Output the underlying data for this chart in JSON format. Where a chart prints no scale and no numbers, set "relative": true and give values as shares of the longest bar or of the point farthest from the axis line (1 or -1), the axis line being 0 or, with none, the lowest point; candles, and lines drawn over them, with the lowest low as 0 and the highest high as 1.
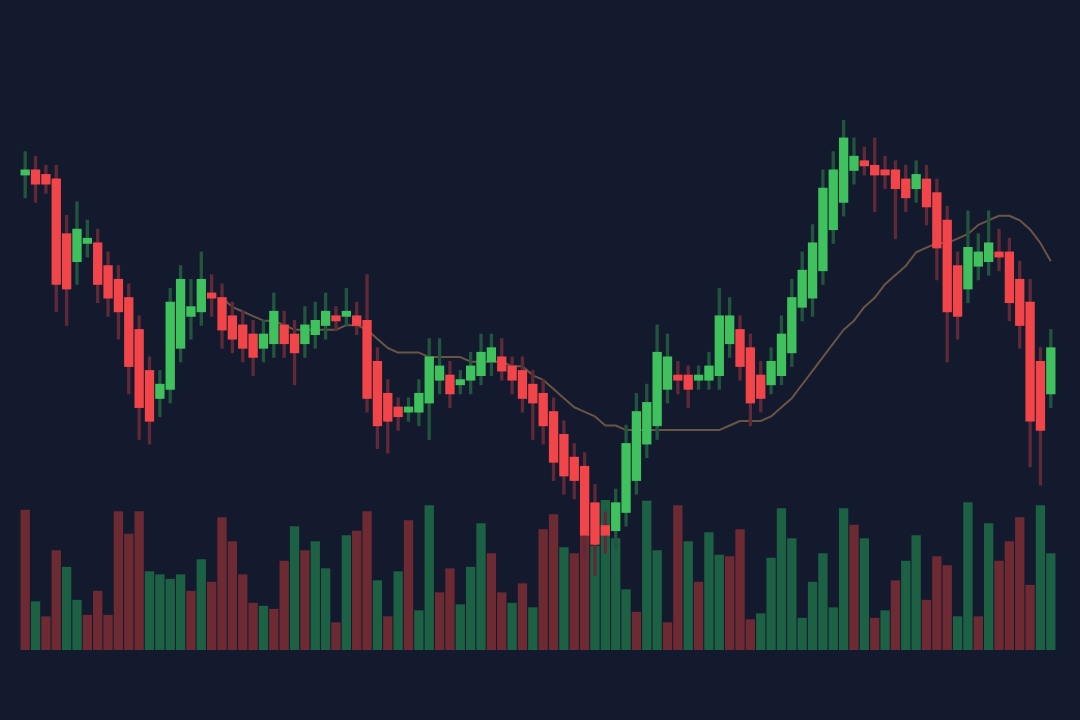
{
  "chart_data": [
    {
      "type": "candlestick",
      "relative": true,
      "legend": false,
      "grid": false,
      "tick_labels": false,
      "categories": [
        null,
        null,
        null,
        null,
        null,
        null,
        null,
        null,
        null,
        null,
        null,
        null,
        null,
        null,
        null,
        null,
        null,
        null,
        null,
        null,
        null,
        null,
        null,
        null,
        null,
        null,
        null,
        null,
        null,
        null,
        null,
        null,
        null,
        null,
        null,
        null,
        null,
        null,
        null,
        null,
        null,
        null,
        null,
        null,
        null,
        null,
        null,
        null,
        null,
        null,
        null,
        null,
        null,
        null,
        null,
        null,
        null,
        null,
        null,
        null,
        null,
        null,
        null,
        null,
        null,
        null,
        null,
        null,
        null,
        null,
        null,
        null,
        null,
        null,
        null,
        null,
        null,
        null,
        null,
        null,
        null,
        null,
        null,
        null,
        null,
        null,
        null,
        null,
        null,
        null,
        null,
        null,
        null,
        null,
        null,
        null,
        null,
        null,
        null,
        null
      ],
      "ohlc": [
        [
          0.88,
          0.93,
          0.83,
          0.89
        ],
        [
          0.89,
          0.92,
          0.82,
          0.86
        ],
        [
          0.88,
          0.9,
          0.84,
          0.86
        ],
        [
          0.87,
          0.9,
          0.58,
          0.64
        ],
        [
          0.75,
          0.79,
          0.55,
          0.63
        ],
        [
          0.69,
          0.82,
          0.64,
          0.76
        ],
        [
          0.73,
          0.78,
          0.7,
          0.74
        ],
        [
          0.73,
          0.76,
          0.6,
          0.64
        ],
        [
          0.68,
          0.71,
          0.57,
          0.61
        ],
        [
          0.65,
          0.68,
          0.52,
          0.58
        ],
        [
          0.61,
          0.64,
          0.4,
          0.46
        ],
        [
          0.54,
          0.57,
          0.3,
          0.37
        ],
        [
          0.45,
          0.48,
          0.29,
          0.34
        ],
        [
          0.39,
          0.45,
          0.35,
          0.42
        ],
        [
          0.41,
          0.63,
          0.38,
          0.6
        ],
        [
          0.5,
          0.68,
          0.47,
          0.65
        ],
        [
          0.57,
          0.65,
          0.52,
          0.59
        ],
        [
          0.58,
          0.71,
          0.55,
          0.65
        ],
        [
          0.62,
          0.66,
          0.57,
          0.61
        ],
        [
          0.61,
          0.64,
          0.5,
          0.54
        ],
        [
          0.57,
          0.6,
          0.49,
          0.52
        ],
        [
          0.55,
          0.58,
          0.47,
          0.5
        ],
        [
          0.53,
          0.56,
          0.44,
          0.48
        ],
        [
          0.5,
          0.56,
          0.47,
          0.53
        ],
        [
          0.51,
          0.62,
          0.48,
          0.58
        ],
        [
          0.55,
          0.58,
          0.48,
          0.51
        ],
        [
          0.53,
          0.56,
          0.42,
          0.49
        ],
        [
          0.51,
          0.59,
          0.48,
          0.55
        ],
        [
          0.53,
          0.6,
          0.5,
          0.56
        ],
        [
          0.55,
          0.62,
          0.52,
          0.58
        ],
        [
          0.57,
          0.59,
          0.54,
          0.56
        ],
        [
          0.57,
          0.63,
          0.55,
          0.58
        ],
        [
          0.57,
          0.6,
          0.53,
          0.55
        ],
        [
          0.56,
          0.66,
          0.36,
          0.39
        ],
        [
          0.47,
          0.5,
          0.28,
          0.33
        ],
        [
          0.4,
          0.43,
          0.27,
          0.34
        ],
        [
          0.37,
          0.39,
          0.32,
          0.35
        ],
        [
          0.36,
          0.39,
          0.34,
          0.37
        ],
        [
          0.36,
          0.43,
          0.33,
          0.4
        ],
        [
          0.38,
          0.52,
          0.3,
          0.48
        ],
        [
          0.43,
          0.52,
          0.4,
          0.46
        ],
        [
          0.44,
          0.47,
          0.37,
          0.4
        ],
        [
          0.42,
          0.45,
          0.4,
          0.43
        ],
        [
          0.43,
          0.49,
          0.4,
          0.46
        ],
        [
          0.44,
          0.53,
          0.42,
          0.49
        ],
        [
          0.47,
          0.53,
          0.44,
          0.5
        ],
        [
          0.48,
          0.52,
          0.43,
          0.45
        ],
        [
          0.46,
          0.48,
          0.4,
          0.43
        ],
        [
          0.45,
          0.48,
          0.36,
          0.39
        ],
        [
          0.42,
          0.45,
          0.3,
          0.38
        ],
        [
          0.4,
          0.43,
          0.29,
          0.33
        ],
        [
          0.36,
          0.39,
          0.21,
          0.25
        ],
        [
          0.31,
          0.34,
          0.18,
          0.22
        ],
        [
          0.26,
          0.29,
          0.17,
          0.21
        ],
        [
          0.24,
          0.27,
          0.04,
          0.09
        ],
        [
          0.16,
          0.2,
          0.0,
          0.07
        ],
        [
          0.11,
          0.14,
          0.05,
          0.09
        ],
        [
          0.1,
          0.19,
          0.06,
          0.16
        ],
        [
          0.14,
          0.33,
          0.11,
          0.29
        ],
        [
          0.21,
          0.4,
          0.18,
          0.36
        ],
        [
          0.29,
          0.42,
          0.26,
          0.38
        ],
        [
          0.33,
          0.55,
          0.3,
          0.49
        ],
        [
          0.41,
          0.53,
          0.38,
          0.48
        ],
        [
          0.44,
          0.47,
          0.4,
          0.43
        ],
        [
          0.44,
          0.46,
          0.37,
          0.41
        ],
        [
          0.43,
          0.46,
          0.41,
          0.44
        ],
        [
          0.43,
          0.49,
          0.41,
          0.46
        ],
        [
          0.44,
          0.63,
          0.41,
          0.57
        ],
        [
          0.51,
          0.61,
          0.48,
          0.57
        ],
        [
          0.54,
          0.57,
          0.43,
          0.46
        ],
        [
          0.5,
          0.53,
          0.33,
          0.38
        ],
        [
          0.44,
          0.47,
          0.36,
          0.39
        ],
        [
          0.42,
          0.5,
          0.4,
          0.47
        ],
        [
          0.44,
          0.57,
          0.42,
          0.53
        ],
        [
          0.49,
          0.65,
          0.46,
          0.61
        ],
        [
          0.59,
          0.71,
          0.56,
          0.67
        ],
        [
          0.61,
          0.77,
          0.57,
          0.73
        ],
        [
          0.67,
          0.89,
          0.64,
          0.85
        ],
        [
          0.76,
          0.93,
          0.73,
          0.89
        ],
        [
          0.82,
          1.0,
          0.79,
          0.96
        ],
        [
          0.89,
          0.96,
          0.86,
          0.92
        ],
        [
          0.91,
          0.94,
          0.88,
          0.9
        ],
        [
          0.9,
          0.96,
          0.8,
          0.88
        ],
        [
          0.89,
          0.92,
          0.85,
          0.88
        ],
        [
          0.89,
          0.91,
          0.74,
          0.85
        ],
        [
          0.87,
          0.9,
          0.8,
          0.83
        ],
        [
          0.85,
          0.91,
          0.82,
          0.88
        ],
        [
          0.87,
          0.9,
          0.77,
          0.81
        ],
        [
          0.84,
          0.87,
          0.65,
          0.72
        ],
        [
          0.78,
          0.81,
          0.47,
          0.58
        ],
        [
          0.68,
          0.71,
          0.52,
          0.57
        ],
        [
          0.63,
          0.8,
          0.6,
          0.72
        ],
        [
          0.68,
          0.75,
          0.65,
          0.71
        ],
        [
          0.69,
          0.8,
          0.66,
          0.73
        ],
        [
          0.71,
          0.76,
          0.67,
          0.7
        ],
        [
          0.71,
          0.74,
          0.56,
          0.6
        ],
        [
          0.65,
          0.69,
          0.5,
          0.55
        ],
        [
          0.6,
          0.65,
          0.24,
          0.34
        ],
        [
          0.47,
          0.5,
          0.2,
          0.32
        ],
        [
          0.4,
          0.54,
          0.37,
          0.5
        ]
      ],
      "colors": [
        "#3fc25d",
        "#f2454a",
        "#f2454a",
        "#f2454a",
        "#f2454a",
        "#3fc25d",
        "#3fc25d",
        "#f2454a",
        "#f2454a",
        "#f2454a",
        "#f2454a",
        "#f2454a",
        "#f2454a",
        "#3fc25d",
        "#3fc25d",
        "#3fc25d",
        "#3fc25d",
        "#3fc25d",
        "#f2454a",
        "#f2454a",
        "#f2454a",
        "#f2454a",
        "#f2454a",
        "#3fc25d",
        "#3fc25d",
        "#f2454a",
        "#f2454a",
        "#3fc25d",
        "#3fc25d",
        "#3fc25d",
        "#f2454a",
        "#3fc25d",
        "#f2454a",
        "#f2454a",
        "#f2454a",
        "#f2454a",
        "#f2454a",
        "#3fc25d",
        "#3fc25d",
        "#3fc25d",
        "#3fc25d",
        "#f2454a",
        "#3fc25d",
        "#3fc25d",
        "#3fc25d",
        "#3fc25d",
        "#f2454a",
        "#f2454a",
        "#f2454a",
        "#f2454a",
        "#f2454a",
        "#f2454a",
        "#f2454a",
        "#f2454a",
        "#f2454a",
        "#f2454a",
        "#f2454a",
        "#3fc25d",
        "#3fc25d",
        "#3fc25d",
        "#3fc25d",
        "#3fc25d",
        "#3fc25d",
        "#f2454a",
        "#f2454a",
        "#3fc25d",
        "#3fc25d",
        "#3fc25d",
        "#3fc25d",
        "#f2454a",
        "#f2454a",
        "#f2454a",
        "#3fc25d",
        "#3fc25d",
        "#3fc25d",
        "#3fc25d",
        "#3fc25d",
        "#3fc25d",
        "#3fc25d",
        "#3fc25d",
        "#3fc25d",
        "#f2454a",
        "#f2454a",
        "#f2454a",
        "#f2454a",
        "#f2454a",
        "#3fc25d",
        "#f2454a",
        "#f2454a",
        "#f2454a",
        "#f2454a",
        "#3fc25d",
        "#3fc25d",
        "#3fc25d",
        "#f2454a",
        "#f2454a",
        "#f2454a",
        "#f2454a",
        "#f2454a",
        "#3fc25d"
      ],
      "series": [
        {
          "type": "line",
          "color": "#6b5444",
          "values": [
            null,
            null,
            null,
            null,
            null,
            null,
            null,
            null,
            null,
            null,
            null,
            null,
            null,
            null,
            null,
            null,
            null,
            null,
            null,
            0.61,
            0.59,
            0.58,
            0.57,
            0.56,
            0.56,
            0.55,
            0.54,
            0.54,
            0.54,
            0.54,
            0.54,
            0.55,
            0.55,
            0.54,
            0.52,
            0.5,
            0.49,
            0.49,
            0.49,
            0.48,
            0.48,
            0.48,
            0.48,
            0.47,
            0.47,
            0.47,
            0.47,
            0.46,
            0.46,
            0.44,
            0.43,
            0.41,
            0.39,
            0.37,
            0.36,
            0.35,
            0.33,
            0.33,
            0.32,
            0.32,
            0.32,
            0.32,
            0.32,
            0.32,
            0.32,
            0.32,
            0.32,
            0.32,
            0.33,
            0.34,
            0.34,
            0.34,
            0.35,
            0.37,
            0.39,
            0.42,
            0.45,
            0.48,
            0.51,
            0.54,
            0.56,
            0.59,
            0.61,
            0.64,
            0.66,
            0.68,
            0.71,
            0.72,
            0.73,
            0.73,
            0.74,
            0.75,
            0.77,
            0.78,
            0.79,
            0.79,
            0.78,
            0.76,
            0.73,
            0.69
          ]
        }
      ]
    },
    {
      "type": "bar",
      "relative": true,
      "legend": false,
      "grid": false,
      "tick_labels": false,
      "categories": [
        null,
        null,
        null,
        null,
        null,
        null,
        null,
        null,
        null,
        null,
        null,
        null,
        null,
        null,
        null,
        null,
        null,
        null,
        null,
        null,
        null,
        null,
        null,
        null,
        null,
        null,
        null,
        null,
        null,
        null,
        null,
        null,
        null,
        null,
        null,
        null,
        null,
        null,
        null,
        null,
        null,
        null,
        null,
        null,
        null,
        null,
        null,
        null,
        null,
        null,
        null,
        null,
        null,
        null,
        null,
        null,
        null,
        null,
        null,
        null,
        null,
        null,
        null,
        null,
        null,
        null,
        null,
        null,
        null,
        null,
        null,
        null,
        null,
        null,
        null,
        null,
        null,
        null,
        null,
        null,
        null,
        null,
        null,
        null,
        null,
        null,
        null,
        null,
        null,
        null,
        null,
        null,
        null,
        null,
        null,
        null,
        null,
        null,
        null,
        null
      ],
      "values": [
        0.93,
        0.32,
        0.22,
        0.66,
        0.55,
        0.33,
        0.23,
        0.39,
        0.23,
        0.92,
        0.77,
        0.92,
        0.52,
        0.5,
        0.47,
        0.5,
        0.39,
        0.6,
        0.45,
        0.88,
        0.72,
        0.5,
        0.31,
        0.29,
        0.27,
        0.59,
        0.82,
        0.66,
        0.72,
        0.54,
        0.18,
        0.76,
        0.79,
        0.92,
        0.46,
        0.22,
        0.52,
        0.86,
        0.26,
        0.96,
        0.38,
        0.54,
        0.3,
        0.55,
        0.84,
        0.64,
        0.38,
        0.31,
        0.44,
        0.28,
        0.8,
        0.9,
        0.68,
        0.64,
        0.77,
        0.69,
        1.0,
        0.74,
        0.4,
        0.25,
        0.99,
        0.66,
        0.18,
        0.96,
        0.72,
        0.45,
        0.78,
        0.63,
        0.62,
        0.8,
        0.2,
        0.24,
        0.61,
        0.94,
        0.74,
        0.21,
        0.45,
        0.64,
        0.28,
        0.94,
        0.83,
        0.74,
        0.21,
        0.26,
        0.46,
        0.59,
        0.76,
        0.33,
        0.62,
        0.56,
        0.22,
        0.98,
        0.22,
        0.84,
        0.59,
        0.72,
        0.88,
        0.43,
        0.96,
        0.64
      ],
      "colors": [
        "#6e2a33",
        "#1d6145",
        "#6e2a33",
        "#6e2a33",
        "#1d6145",
        "#1d6145",
        "#6e2a33",
        "#6e2a33",
        "#6e2a33",
        "#6e2a33",
        "#6e2a33",
        "#6e2a33",
        "#1d6145",
        "#1d6145",
        "#1d6145",
        "#1d6145",
        "#6e2a33",
        "#1d6145",
        "#6e2a33",
        "#6e2a33",
        "#6e2a33",
        "#6e2a33",
        "#6e2a33",
        "#1d6145",
        "#6e2a33",
        "#6e2a33",
        "#1d6145",
        "#6e2a33",
        "#1d6145",
        "#1d6145",
        "#6e2a33",
        "#1d6145",
        "#6e2a33",
        "#6e2a33",
        "#1d6145",
        "#6e2a33",
        "#1d6145",
        "#6e2a33",
        "#1d6145",
        "#1d6145",
        "#6e2a33",
        "#6e2a33",
        "#1d6145",
        "#1d6145",
        "#1d6145",
        "#6e2a33",
        "#6e2a33",
        "#1d6145",
        "#6e2a33",
        "#1d6145",
        "#6e2a33",
        "#6e2a33",
        "#1d6145",
        "#6e2a33",
        "#6e2a33",
        "#1d6145",
        "#1d6145",
        "#1d6145",
        "#1d6145",
        "#6e2a33",
        "#1d6145",
        "#1d6145",
        "#6e2a33",
        "#6e2a33",
        "#1d6145",
        "#6e2a33",
        "#1d6145",
        "#1d6145",
        "#6e2a33",
        "#6e2a33",
        "#6e2a33",
        "#1d6145",
        "#1d6145",
        "#1d6145",
        "#1d6145",
        "#1d6145",
        "#1d6145",
        "#1d6145",
        "#1d6145",
        "#1d6145",
        "#6e2a33",
        "#1d6145",
        "#6e2a33",
        "#1d6145",
        "#6e2a33",
        "#1d6145",
        "#1d6145",
        "#6e2a33",
        "#6e2a33",
        "#6e2a33",
        "#1d6145",
        "#1d6145",
        "#6e2a33",
        "#1d6145",
        "#6e2a33",
        "#6e2a33",
        "#6e2a33",
        "#6e2a33",
        "#1d6145",
        "#1d6145"
      ]
    }
  ]
}
